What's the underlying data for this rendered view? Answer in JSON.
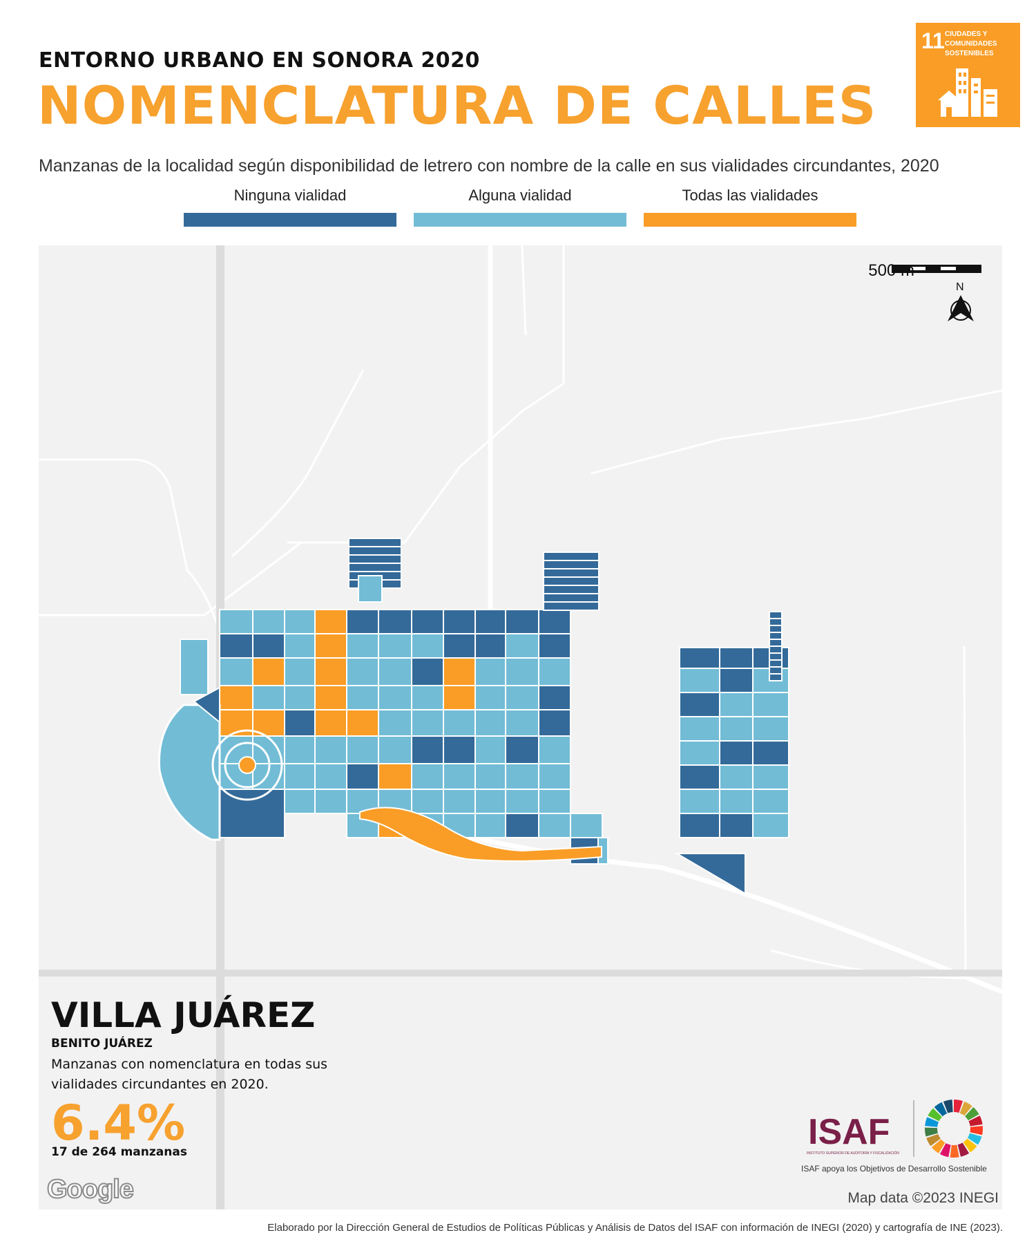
{
  "header": {
    "supertitle": "ENTORNO URBANO EN SONORA 2020",
    "title": "NOMENCLATURA DE CALLES",
    "description": "Manzanas de la localidad según disponibilidad de letrero con nombre de la calle en sus vialidades circundantes, 2020"
  },
  "legend": [
    {
      "label": "Ninguna vialidad",
      "color": "#346a99"
    },
    {
      "label": "Alguna vialidad",
      "color": "#72bcd6"
    },
    {
      "label": "Todas las vialidades",
      "color": "#f99d26"
    }
  ],
  "sdg_badge": {
    "number": "11",
    "text": "CIUDADES Y COMUNIDADES SOSTENIBLES",
    "color": "#f99d26"
  },
  "map": {
    "scale_label": "500 m",
    "north_label": "N",
    "attribution": "Map data ©2023 INEGI",
    "provider_logo": "Google"
  },
  "locality": {
    "name": "VILLA JUÁREZ",
    "municipality": "BENITO JUÁREZ",
    "description": "Manzanas con nomenclatura en todas sus vialidades circundantes en 2020.",
    "percentage": "6.4%",
    "count_text": "17 de 264 manzanas"
  },
  "logos": {
    "isaf": "ISAF",
    "isaf_fullname": "INSTITUTO SUPERIOR DE AUDITORÍA Y FISCALIZACIÓN",
    "isaf_support": "ISAF apoya los Objetivos de Desarrollo Sostenible"
  },
  "footer": "Elaborado por la Dirección General de Estudios de Políticas Públicas y Análisis de Datos del ISAF con información de INEGI (2020) y cartografía de INE (2023)."
}
